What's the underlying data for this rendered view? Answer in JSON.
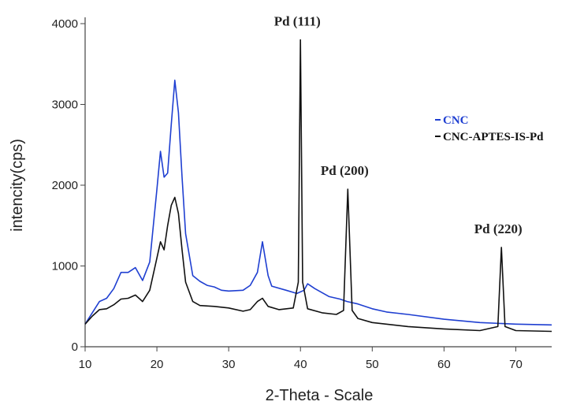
{
  "chart_data": {
    "type": "line",
    "xlabel": "2-Theta - Scale",
    "ylabel": "intencity(cps)",
    "xlim": [
      10,
      75
    ],
    "ylim": [
      0,
      4000
    ],
    "x_ticks": [
      10,
      20,
      30,
      40,
      50,
      60,
      70
    ],
    "y_ticks": [
      0,
      1000,
      2000,
      3000,
      4000
    ],
    "legend_position": "right",
    "series": [
      {
        "name": "CNC",
        "color": "#1f3fd1",
        "x": [
          10,
          11,
          12,
          13,
          14,
          15,
          16,
          17,
          18,
          19,
          20,
          20.5,
          21,
          21.5,
          22,
          22.5,
          23,
          23.5,
          24,
          25,
          26,
          27,
          28,
          29,
          30,
          32,
          33,
          34,
          34.7,
          35.5,
          36,
          38,
          39.5,
          40.5,
          41,
          42,
          44,
          45.5,
          46.5,
          48,
          50,
          52,
          55,
          60,
          65,
          70,
          75
        ],
        "y": [
          280,
          420,
          560,
          600,
          720,
          920,
          920,
          980,
          820,
          1050,
          1950,
          2420,
          2100,
          2150,
          2750,
          3300,
          2900,
          2100,
          1400,
          880,
          810,
          760,
          740,
          700,
          690,
          700,
          760,
          920,
          1300,
          880,
          750,
          700,
          660,
          700,
          780,
          720,
          620,
          590,
          560,
          530,
          470,
          430,
          400,
          340,
          300,
          280,
          270
        ]
      },
      {
        "name": "CNC-APTES-IS-Pd",
        "color": "#111111",
        "x": [
          10,
          11,
          12,
          13,
          14,
          15,
          16,
          17,
          18,
          19,
          20,
          20.5,
          21,
          21.5,
          22,
          22.5,
          23,
          23.5,
          24,
          25,
          26,
          28,
          30,
          32,
          33,
          34,
          34.7,
          35.5,
          37,
          39,
          39.7,
          40,
          40.3,
          41,
          43,
          45,
          46,
          46.6,
          47.2,
          48,
          50,
          55,
          60,
          65,
          67.5,
          68,
          68.5,
          70,
          75
        ],
        "y": [
          280,
          380,
          460,
          470,
          520,
          590,
          600,
          640,
          560,
          700,
          1100,
          1300,
          1200,
          1500,
          1750,
          1850,
          1650,
          1200,
          800,
          560,
          510,
          500,
          480,
          440,
          460,
          560,
          600,
          500,
          460,
          480,
          800,
          3800,
          800,
          470,
          420,
          400,
          450,
          1950,
          450,
          350,
          300,
          250,
          220,
          200,
          250,
          1230,
          250,
          200,
          190
        ]
      }
    ],
    "annotations": [
      {
        "text": "Pd (111)",
        "x": 40,
        "y": 3800
      },
      {
        "text": "Pd (200)",
        "x": 46.6,
        "y": 1950
      },
      {
        "text": "Pd (220)",
        "x": 68,
        "y": 1230
      }
    ]
  }
}
